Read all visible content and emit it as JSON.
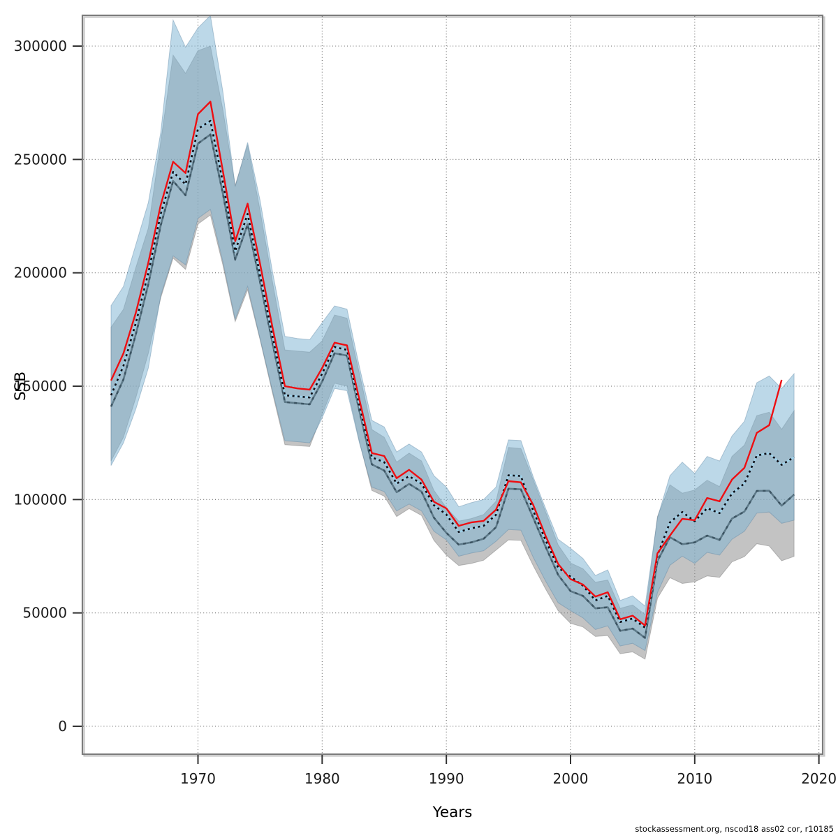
{
  "figure": {
    "xlabel": "Years",
    "ylabel": "SSB",
    "footer": "stockassessment.org, nscod18 ass02 cor, r10185"
  },
  "chart_data": {
    "type": "line",
    "title": "",
    "xlabel": "Years",
    "ylabel": "SSB",
    "x_ticks": [
      1970,
      1980,
      1990,
      2000,
      2010,
      2020
    ],
    "y_ticks": [
      0,
      50000,
      100000,
      150000,
      200000,
      250000,
      300000
    ],
    "xlim": [
      1960.7,
      2020.3
    ],
    "ylim": [
      0,
      313600
    ],
    "grid": "dotted-both-axes",
    "legend": "none",
    "x": [
      1963,
      1964,
      1965,
      1966,
      1967,
      1968,
      1969,
      1970,
      1971,
      1972,
      1973,
      1974,
      1975,
      1976,
      1977,
      1978,
      1979,
      1980,
      1981,
      1982,
      1983,
      1984,
      1985,
      1986,
      1987,
      1988,
      1989,
      1990,
      1991,
      1992,
      1993,
      1994,
      1995,
      1996,
      1997,
      1998,
      1999,
      2000,
      2001,
      2002,
      2003,
      2004,
      2005,
      2006,
      2007,
      2008,
      2009,
      2010,
      2011,
      2012,
      2013,
      2014,
      2015,
      2016,
      2017,
      2018
    ],
    "bands": [
      {
        "name": "gray-ci-band",
        "fill": "rgba(140,140,140,0.52)",
        "edge": "rgba(120,120,120,0.45)",
        "upper": [
          176000,
          183900,
          202400,
          219700,
          258000,
          296000,
          288000,
          298000,
          300000,
          272000,
          238500,
          256500,
          227500,
          196000,
          166000,
          165500,
          165000,
          170000,
          181400,
          180000,
          155500,
          130900,
          127500,
          116500,
          120500,
          117000,
          104000,
          96400,
          90500,
          91600,
          93400,
          99200,
          123000,
          122500,
          108700,
          94500,
          80000,
          72000,
          69500,
          63500,
          64500,
          52000,
          53500,
          49300,
          92500,
          106500,
          102800,
          104200,
          108500,
          105700,
          119000,
          124000,
          137000,
          138500,
          131000,
          139200
        ],
        "lower": [
          117000,
          127500,
          145000,
          164500,
          189000,
          206500,
          201500,
          221500,
          225500,
          203500,
          178500,
          192500,
          170500,
          147000,
          124200,
          123800,
          123400,
          137500,
          151300,
          150000,
          125500,
          104000,
          101500,
          92500,
          96000,
          93000,
          82000,
          75500,
          70900,
          71800,
          73200,
          77700,
          82200,
          82000,
          70800,
          60500,
          51000,
          45400,
          43800,
          39600,
          40000,
          32000,
          32800,
          29600,
          56500,
          65500,
          63000,
          63700,
          66300,
          65700,
          72500,
          74800,
          80500,
          79500,
          73000,
          74900
        ]
      },
      {
        "name": "blue-ci-band",
        "fill": "rgba(126,180,211,0.52)",
        "edge": "rgba(90,130,160,0.40)",
        "upper": [
          185500,
          194000,
          212500,
          231000,
          262000,
          311500,
          299500,
          308000,
          313500,
          280000,
          238000,
          257500,
          232000,
          200500,
          172000,
          171000,
          170500,
          178000,
          185400,
          184000,
          158500,
          134900,
          132000,
          121000,
          124500,
          121000,
          110500,
          105500,
          96800,
          98600,
          100000,
          105500,
          126300,
          126000,
          110000,
          96000,
          82500,
          78500,
          74000,
          66500,
          69000,
          55500,
          57500,
          53000,
          92000,
          110500,
          116500,
          111500,
          119000,
          117000,
          128000,
          134500,
          151500,
          154500,
          149000,
          155500
        ],
        "lower": [
          115000,
          125000,
          140000,
          158000,
          190000,
          207500,
          203500,
          224000,
          228000,
          205000,
          179500,
          194000,
          171000,
          148000,
          125900,
          125500,
          125000,
          136000,
          149000,
          148000,
          125000,
          105500,
          103500,
          95000,
          98000,
          95000,
          86000,
          82200,
          75000,
          76400,
          77400,
          81600,
          86800,
          86500,
          74500,
          64000,
          54500,
          51000,
          47800,
          42700,
          44300,
          35400,
          36600,
          33400,
          59000,
          71000,
          75000,
          71800,
          76700,
          75500,
          82500,
          86000,
          94000,
          94500,
          89500,
          90900
        ]
      }
    ],
    "series": [
      {
        "name": "gray-run-line",
        "style": "solid-slate-with-dark-dashes",
        "color": "#5e7a89",
        "overlay_color": "rgba(25,45,60,0.5)",
        "overlay_dash": [
          4,
          6
        ],
        "width": 2.6,
        "x_end": 2018,
        "values": [
          141000,
          153000,
          173000,
          195000,
          221000,
          240500,
          234200,
          257000,
          261000,
          235000,
          205800,
          221300,
          196000,
          169000,
          143000,
          142500,
          142000,
          152000,
          164500,
          163500,
          139000,
          115500,
          112800,
          103200,
          106900,
          103500,
          92000,
          85300,
          80100,
          81100,
          82700,
          87800,
          104800,
          104500,
          91900,
          79100,
          66800,
          59600,
          57500,
          52000,
          52500,
          42100,
          43100,
          39000,
          72900,
          83400,
          80300,
          81100,
          84100,
          82200,
          91600,
          94700,
          103800,
          103900,
          97300,
          102200
        ]
      },
      {
        "name": "estimate-line",
        "style": "black-dotted-over-lightblue",
        "color": "#0c0c14",
        "dash": [
          3,
          4.5
        ],
        "base_color": "#9fd0e8",
        "width": 2.6,
        "x_end": 2018,
        "values": [
          146000,
          159000,
          178000,
          200000,
          226000,
          244500,
          239000,
          263500,
          267000,
          240000,
          209500,
          226000,
          199000,
          172000,
          146000,
          145500,
          145000,
          155500,
          167300,
          166000,
          141500,
          118600,
          116500,
          107000,
          110300,
          107000,
          97500,
          93400,
          85700,
          87300,
          88400,
          93300,
          110700,
          110400,
          95000,
          82000,
          70000,
          66000,
          62000,
          55500,
          57500,
          46000,
          47500,
          43500,
          75500,
          89900,
          94500,
          90400,
          96200,
          94000,
          102700,
          107100,
          119400,
          120500,
          115300,
          118700
        ]
      },
      {
        "name": "red-run-line",
        "style": "solid-red",
        "color": "#ee0e12",
        "width": 2.4,
        "x_end": 2017,
        "values": [
          152500,
          164500,
          182500,
          204500,
          230000,
          249000,
          244000,
          270000,
          275500,
          245000,
          214000,
          230500,
          204000,
          176000,
          150000,
          149000,
          148500,
          158000,
          169200,
          168000,
          144000,
          120500,
          119200,
          109400,
          113100,
          108800,
          99000,
          96100,
          88400,
          89900,
          90600,
          95500,
          108100,
          107600,
          97600,
          83900,
          71600,
          64900,
          62500,
          57200,
          59100,
          47200,
          48800,
          44400,
          76300,
          84100,
          91500,
          90900,
          100700,
          99200,
          108800,
          114000,
          129400,
          132800,
          152800
        ]
      }
    ],
    "frame_color": "#7c7c7c",
    "frame_shadow_color": "#c9c9c9",
    "grid_color": "#4a4a4a",
    "tick_color": "#333333"
  }
}
